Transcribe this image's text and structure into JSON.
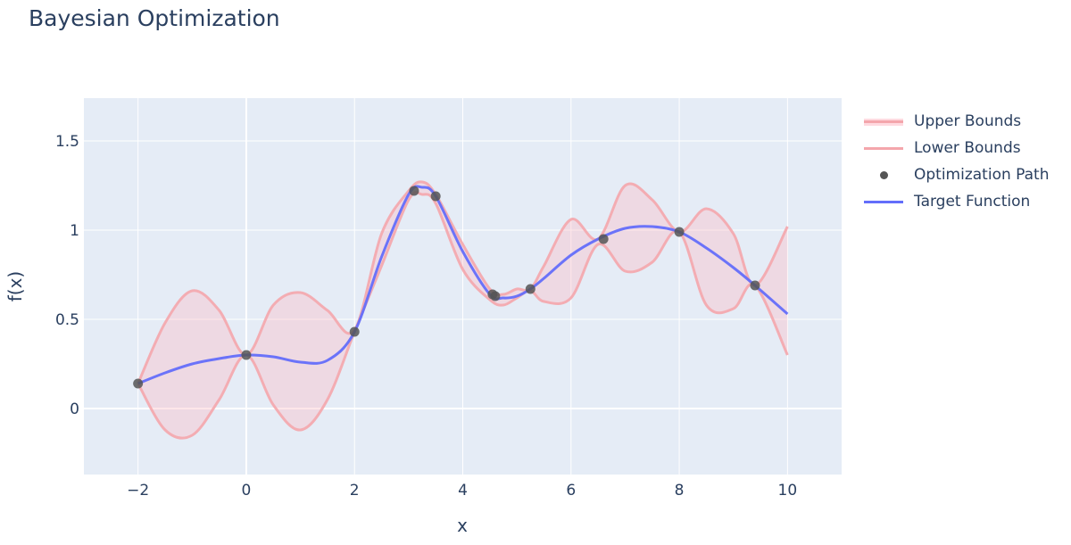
{
  "title": "Bayesian Optimization",
  "chart_data": {
    "type": "line",
    "title": "Bayesian Optimization",
    "xlabel": "x",
    "ylabel": "f(x)",
    "xlim": [
      -3,
      11
    ],
    "ylim": [
      -0.37,
      1.74
    ],
    "grid": true,
    "legend_position": "right",
    "x_ticks": [
      -2,
      0,
      2,
      4,
      6,
      8,
      10
    ],
    "x_tick_labels": [
      "−2",
      "0",
      "2",
      "4",
      "6",
      "8",
      "10"
    ],
    "y_ticks": [
      0,
      0.5,
      1,
      1.5
    ],
    "y_tick_labels": [
      "0",
      "0.5",
      "1",
      "1.5"
    ],
    "x": [
      -2,
      -1.5,
      -1,
      -0.5,
      0,
      0.5,
      1,
      1.5,
      2,
      2.5,
      3,
      3.25,
      3.5,
      4,
      4.5,
      4.75,
      5,
      5.25,
      5.5,
      6,
      6.5,
      7,
      7.5,
      8,
      8.5,
      9,
      9.4,
      10
    ],
    "series": [
      {
        "name": "Upper Bounds",
        "color": "#f4a6ac",
        "values": [
          0.14,
          0.48,
          0.66,
          0.55,
          0.3,
          0.58,
          0.65,
          0.55,
          0.44,
          0.98,
          1.22,
          1.27,
          1.2,
          0.92,
          0.67,
          0.64,
          0.67,
          0.67,
          0.8,
          1.06,
          0.95,
          1.25,
          1.17,
          0.99,
          1.12,
          0.98,
          0.69,
          1.02
        ]
      },
      {
        "name": "Lower Bounds",
        "color": "#f4a6ac",
        "values": [
          0.14,
          -0.12,
          -0.15,
          0.05,
          0.3,
          0.02,
          -0.12,
          0.05,
          0.43,
          0.8,
          1.17,
          1.2,
          1.15,
          0.78,
          0.61,
          0.58,
          0.62,
          0.66,
          0.6,
          0.62,
          0.92,
          0.77,
          0.82,
          0.99,
          0.58,
          0.56,
          0.69,
          0.3
        ]
      },
      {
        "name": "Target Function",
        "color": "#636efa",
        "values": [
          0.14,
          0.2,
          0.25,
          0.28,
          0.3,
          0.29,
          0.26,
          0.27,
          0.43,
          0.85,
          1.2,
          1.24,
          1.19,
          0.88,
          0.64,
          0.62,
          0.63,
          0.67,
          0.73,
          0.86,
          0.95,
          1.01,
          1.02,
          0.99,
          0.9,
          0.79,
          0.69,
          0.53
        ]
      }
    ],
    "optimization_path": {
      "name": "Optimization Path",
      "color": "#555555",
      "x": [
        -2,
        0,
        2,
        3.1,
        3.5,
        4.55,
        4.6,
        5.25,
        6.6,
        8,
        9.4
      ],
      "y": [
        0.14,
        0.3,
        0.43,
        1.22,
        1.19,
        0.64,
        0.63,
        0.67,
        0.95,
        0.99,
        0.69
      ]
    }
  },
  "legend": {
    "items": [
      {
        "label": "Upper Bounds",
        "type": "fill-line"
      },
      {
        "label": "Lower Bounds",
        "type": "line"
      },
      {
        "label": "Optimization Path",
        "type": "marker"
      },
      {
        "label": "Target Function",
        "type": "line"
      }
    ]
  },
  "colors": {
    "plot_bg": "#e5ecf6",
    "grid": "#ffffff",
    "bounds": "#f4a6ac",
    "band_fill": "rgba(255,182,193,0.35)",
    "target": "#636efa",
    "marker": "#555555"
  }
}
